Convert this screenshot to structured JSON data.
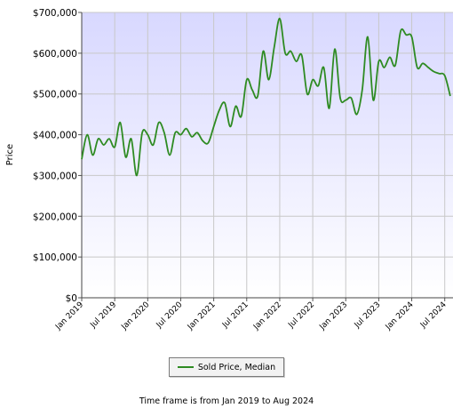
{
  "chart_data": {
    "type": "line",
    "ylabel": "Price",
    "xlabel": "",
    "ylim": [
      0,
      700000
    ],
    "yticks": [
      {
        "value": 0,
        "label": "$0"
      },
      {
        "value": 100000,
        "label": "$100,000"
      },
      {
        "value": 200000,
        "label": "$200,000"
      },
      {
        "value": 300000,
        "label": "$300,000"
      },
      {
        "value": 400000,
        "label": "$400,000"
      },
      {
        "value": 500000,
        "label": "$500,000"
      },
      {
        "value": 600000,
        "label": "$600,000"
      },
      {
        "value": 700000,
        "label": "$700,000"
      }
    ],
    "xticks": [
      "Jan 2019",
      "Jul 2019",
      "Jan 2020",
      "Jul 2020",
      "Jan 2021",
      "Jul 2021",
      "Jan 2022",
      "Jul 2022",
      "Jan 2023",
      "Jul 2023",
      "Jan 2024",
      "Jul 2024"
    ],
    "grid": true,
    "legend_placement": "bottom",
    "line_color": "#2e8b22",
    "plot_background": [
      "#d8d8ff",
      "#ffffff"
    ],
    "series": [
      {
        "name": "Sold Price, Median",
        "x": [
          "2019-01",
          "2019-02",
          "2019-03",
          "2019-04",
          "2019-05",
          "2019-06",
          "2019-07",
          "2019-08",
          "2019-09",
          "2019-10",
          "2019-11",
          "2019-12",
          "2020-01",
          "2020-02",
          "2020-03",
          "2020-04",
          "2020-05",
          "2020-06",
          "2020-07",
          "2020-08",
          "2020-09",
          "2020-10",
          "2020-11",
          "2020-12",
          "2021-01",
          "2021-02",
          "2021-03",
          "2021-04",
          "2021-05",
          "2021-06",
          "2021-07",
          "2021-08",
          "2021-09",
          "2021-10",
          "2021-11",
          "2021-12",
          "2022-01",
          "2022-02",
          "2022-03",
          "2022-04",
          "2022-05",
          "2022-06",
          "2022-07",
          "2022-08",
          "2022-09",
          "2022-10",
          "2022-11",
          "2022-12",
          "2023-01",
          "2023-02",
          "2023-03",
          "2023-04",
          "2023-05",
          "2023-06",
          "2023-07",
          "2023-08",
          "2023-09",
          "2023-10",
          "2023-11",
          "2023-12",
          "2024-01",
          "2024-02",
          "2024-03",
          "2024-04",
          "2024-05",
          "2024-06",
          "2024-07",
          "2024-08"
        ],
        "values": [
          340000,
          400000,
          350000,
          390000,
          375000,
          390000,
          370000,
          430000,
          345000,
          390000,
          300000,
          405000,
          400000,
          375000,
          430000,
          405000,
          350000,
          405000,
          400000,
          415000,
          395000,
          405000,
          385000,
          380000,
          420000,
          460000,
          478000,
          420000,
          470000,
          445000,
          535000,
          510000,
          495000,
          605000,
          535000,
          615000,
          685000,
          600000,
          605000,
          580000,
          595000,
          500000,
          535000,
          520000,
          565000,
          465000,
          610000,
          490000,
          485000,
          490000,
          450000,
          510000,
          640000,
          485000,
          580000,
          565000,
          590000,
          570000,
          655000,
          645000,
          640000,
          565000,
          575000,
          565000,
          555000,
          550000,
          545000,
          495000
        ]
      }
    ],
    "timeframe_note": "Time frame is from Jan 2019 to Aug 2024"
  }
}
